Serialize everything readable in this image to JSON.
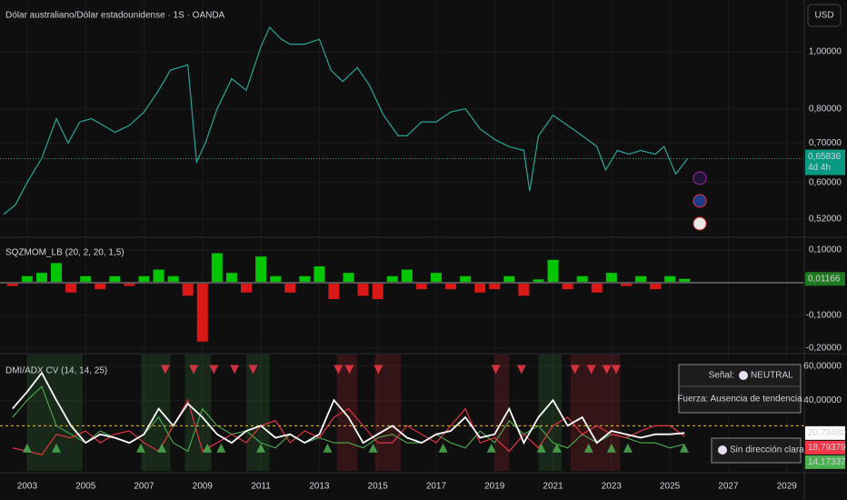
{
  "header": {
    "currency": "USD"
  },
  "info_box": {
    "signal_label": "Señal:",
    "signal": "NEUTRAL",
    "strength": "Fuerza: Ausencia de tendencia",
    "direction": "Sin dirección clara"
  },
  "chart_data": [
    {
      "type": "line",
      "title": "Dólar australiano/Dólar estadounidense · 1S · OANDA",
      "log_scale": true,
      "color": "#26a69a",
      "x": [
        2002.2,
        2002.6,
        2003.0,
        2003.5,
        2004.0,
        2004.4,
        2004.8,
        2005.2,
        2005.6,
        2006.0,
        2006.5,
        2007.0,
        2007.5,
        2007.9,
        2008.5,
        2008.8,
        2009.1,
        2009.5,
        2010.0,
        2010.5,
        2011.0,
        2011.3,
        2011.7,
        2012.0,
        2012.5,
        2013.0,
        2013.4,
        2013.8,
        2014.3,
        2014.7,
        2015.2,
        2015.7,
        2016.0,
        2016.5,
        2017.0,
        2017.5,
        2018.0,
        2018.5,
        2019.0,
        2019.5,
        2020.0,
        2020.2,
        2020.5,
        2021.0,
        2021.5,
        2022.0,
        2022.5,
        2022.8,
        2023.2,
        2023.6,
        2024.0,
        2024.5,
        2024.8,
        2025.2,
        2025.6
      ],
      "values": [
        0.53,
        0.55,
        0.6,
        0.66,
        0.77,
        0.7,
        0.76,
        0.77,
        0.75,
        0.73,
        0.75,
        0.79,
        0.86,
        0.93,
        0.95,
        0.65,
        0.7,
        0.8,
        0.9,
        0.86,
        1.02,
        1.1,
        1.05,
        1.03,
        1.03,
        1.05,
        0.93,
        0.89,
        0.94,
        0.88,
        0.78,
        0.72,
        0.72,
        0.76,
        0.76,
        0.79,
        0.8,
        0.74,
        0.71,
        0.69,
        0.68,
        0.58,
        0.72,
        0.78,
        0.75,
        0.72,
        0.69,
        0.63,
        0.68,
        0.67,
        0.68,
        0.67,
        0.69,
        0.62,
        0.65836
      ],
      "xlim": [
        2002.07,
        2029.6
      ],
      "ylim": [
        0.486,
        1.224
      ],
      "yticks": [
        {
          "value": 0.52,
          "label": "0,52000"
        },
        {
          "value": 0.6,
          "label": "0,60000"
        },
        {
          "value": 0.7,
          "label": "0,70000"
        },
        {
          "value": 0.8,
          "label": "0,80000"
        },
        {
          "value": 1,
          "label": "1,00000"
        }
      ],
      "last_price": {
        "value": 0.65836,
        "label": "0,65836",
        "countdown": "4d 4h",
        "color": "#089981"
      }
    },
    {
      "type": "bar",
      "title": "SQZMOM_LB (20, 2, 20, 1,5)",
      "colors": {
        "positive": "#00e600",
        "negative": "#ff1a1a"
      },
      "x": [
        2002.5,
        2003.0,
        2003.5,
        2004.0,
        2004.5,
        2005.0,
        2005.5,
        2006.0,
        2006.5,
        2007.0,
        2007.5,
        2008.0,
        2008.5,
        2009.0,
        2009.5,
        2010.0,
        2010.5,
        2011.0,
        2011.5,
        2012.0,
        2012.5,
        2013.0,
        2013.5,
        2014.0,
        2014.5,
        2015.0,
        2015.5,
        2016.0,
        2016.5,
        2017.0,
        2017.5,
        2018.0,
        2018.5,
        2019.0,
        2019.5,
        2020.0,
        2020.5,
        2021.0,
        2021.5,
        2022.0,
        2022.5,
        2023.0,
        2023.5,
        2024.0,
        2024.5,
        2025.0,
        2025.5
      ],
      "values": [
        -0.01,
        0.02,
        0.03,
        0.06,
        -0.03,
        0.02,
        -0.02,
        0.02,
        -0.01,
        0.02,
        0.04,
        0.02,
        -0.04,
        -0.18,
        0.09,
        0.03,
        -0.03,
        0.08,
        0.02,
        -0.03,
        0.02,
        0.05,
        -0.05,
        0.03,
        -0.04,
        -0.05,
        0.02,
        0.04,
        -0.02,
        0.03,
        -0.02,
        0.02,
        -0.03,
        -0.02,
        0.02,
        -0.04,
        0.01,
        0.07,
        -0.02,
        0.02,
        -0.03,
        0.03,
        -0.01,
        0.02,
        -0.02,
        0.02,
        0.01166
      ],
      "last_label": "0,01166",
      "xlim": [
        2002.07,
        2029.6
      ],
      "ylim": [
        -0.214,
        0.136
      ],
      "yticks": [
        {
          "value": -0.2,
          "label": "-0,20000"
        },
        {
          "value": -0.1,
          "label": "-0,10000"
        },
        {
          "value": 0,
          "label": "0,00000"
        },
        {
          "value": 0.1,
          "label": "0,10000"
        }
      ]
    },
    {
      "type": "line",
      "title": "DMI/ADX CV (14, 14, 25)",
      "x": [
        2002.5,
        2003.0,
        2003.5,
        2004.0,
        2004.5,
        2005.0,
        2005.5,
        2006.0,
        2006.5,
        2007.0,
        2007.5,
        2008.0,
        2008.5,
        2009.0,
        2009.5,
        2010.0,
        2010.5,
        2011.0,
        2011.5,
        2012.0,
        2012.5,
        2013.0,
        2013.5,
        2014.0,
        2014.5,
        2015.0,
        2015.5,
        2016.0,
        2016.5,
        2017.0,
        2017.5,
        2018.0,
        2018.5,
        2019.0,
        2019.5,
        2020.0,
        2020.5,
        2021.0,
        2021.5,
        2022.0,
        2022.5,
        2023.0,
        2023.5,
        2024.0,
        2024.5,
        2025.0,
        2025.5
      ],
      "series": [
        {
          "color": "#ffffff",
          "last_label": "20,72480",
          "values": [
            35,
            45,
            56,
            40,
            25,
            15,
            20,
            18,
            15,
            20,
            35,
            25,
            38,
            30,
            20,
            15,
            22,
            25,
            18,
            20,
            15,
            20,
            40,
            30,
            15,
            20,
            25,
            18,
            15,
            20,
            22,
            30,
            18,
            20,
            35,
            15,
            30,
            40,
            25,
            30,
            15,
            22,
            20,
            18,
            20,
            20,
            20.7248
          ]
        },
        {
          "color": "#f23645",
          "last_label": "18,79379",
          "values": [
            12,
            10,
            8,
            20,
            18,
            22,
            15,
            20,
            22,
            15,
            10,
            25,
            40,
            10,
            15,
            20,
            15,
            25,
            28,
            15,
            22,
            18,
            30,
            35,
            25,
            15,
            15,
            25,
            20,
            15,
            25,
            35,
            15,
            18,
            10,
            20,
            12,
            25,
            30,
            20,
            25,
            20,
            18,
            22,
            25,
            25,
            18.79379
          ]
        },
        {
          "color": "#4caf50",
          "last_label": "14,17337",
          "values": [
            30,
            40,
            48,
            25,
            20,
            15,
            22,
            18,
            15,
            20,
            30,
            15,
            10,
            35,
            25,
            20,
            22,
            15,
            12,
            20,
            15,
            18,
            15,
            15,
            12,
            18,
            20,
            15,
            15,
            20,
            15,
            12,
            22,
            15,
            28,
            20,
            25,
            15,
            12,
            20,
            15,
            20,
            18,
            15,
            15,
            12,
            14.17337
          ]
        }
      ],
      "threshold": 25,
      "threshold_color": "#e6c229",
      "zones": [
        {
          "start": 2003.0,
          "end": 2004.9,
          "color": "#4caf50"
        },
        {
          "start": 2006.9,
          "end": 2007.9,
          "color": "#4caf50"
        },
        {
          "start": 2008.4,
          "end": 2009.3,
          "color": "#4caf50"
        },
        {
          "start": 2010.5,
          "end": 2011.3,
          "color": "#4caf50"
        },
        {
          "start": 2020.5,
          "end": 2021.3,
          "color": "#4caf50"
        },
        {
          "start": 2013.6,
          "end": 2014.3,
          "color": "#f23645"
        },
        {
          "start": 2014.9,
          "end": 2015.8,
          "color": "#f23645"
        },
        {
          "start": 2019.0,
          "end": 2019.5,
          "color": "#f23645"
        },
        {
          "start": 2021.6,
          "end": 2023.3,
          "color": "#f23645"
        }
      ],
      "sell_signals": [
        2007.73,
        2008.7,
        2009.39,
        2010.1,
        2010.73,
        2013.65,
        2014.03,
        2015.02,
        2019.04,
        2019.92,
        2021.75,
        2022.31,
        2022.84,
        2023.16
      ],
      "buy_signals": [
        2003.0,
        2004.0,
        2006.89,
        2007.61,
        2009.17,
        2009.64,
        2011.0,
        2013.28,
        2014.84,
        2017.24,
        2018.89,
        2020.6,
        2021.13,
        2022.22,
        2023.0,
        2023.56,
        2025.49
      ],
      "xlim": [
        2002.07,
        2029.6
      ],
      "ylim": [
        -1.5,
        66.8
      ],
      "yticks": [
        {
          "value": 40,
          "label": "40,00000"
        },
        {
          "value": 60,
          "label": "60,00000"
        }
      ],
      "xticks": [
        2003,
        2005,
        2007,
        2009,
        2011,
        2013,
        2015,
        2017,
        2019,
        2021,
        2023,
        2025,
        2027,
        2029
      ]
    }
  ]
}
